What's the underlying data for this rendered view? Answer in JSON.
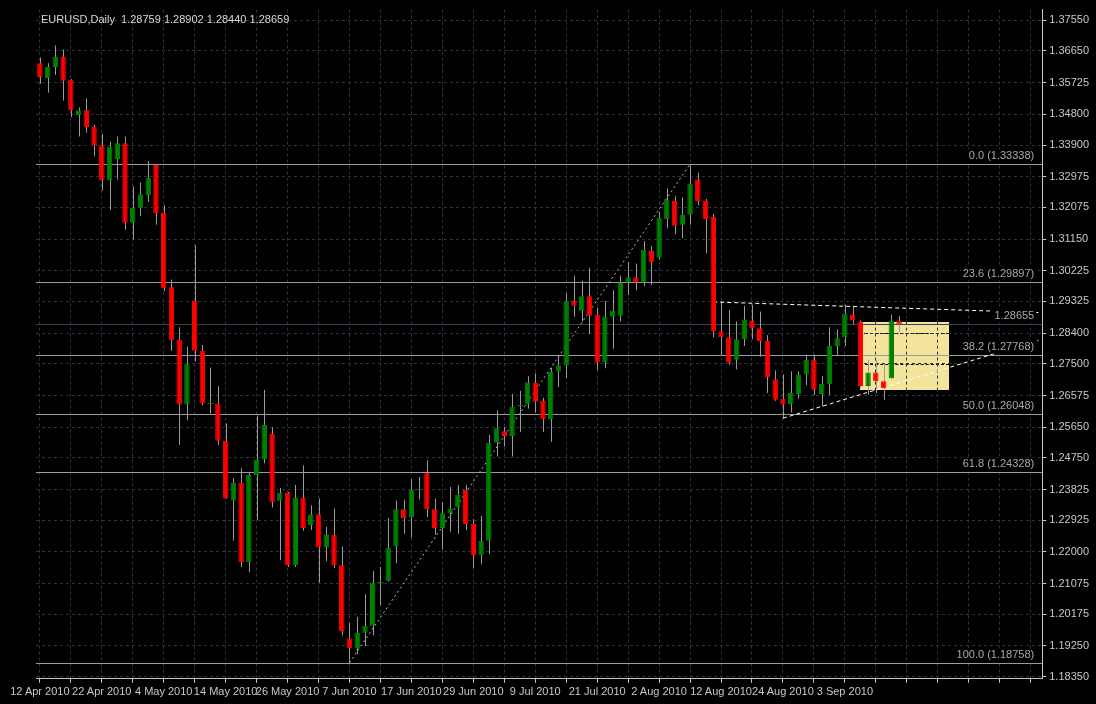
{
  "chart_data": {
    "type": "candlestick",
    "title": "EURUSD,Daily  1.28759 1.28902 1.28440 1.28659",
    "categories": [
      "12 Apr 2010",
      null,
      null,
      null,
      null,
      null,
      null,
      null,
      "22 Apr 2010",
      null,
      null,
      null,
      null,
      null,
      null,
      null,
      "4 May 2010",
      null,
      null,
      null,
      null,
      null,
      null,
      null,
      "14 May 2010",
      null,
      null,
      null,
      null,
      null,
      null,
      null,
      "26 May 2010",
      null,
      null,
      null,
      null,
      null,
      null,
      null,
      "7 Jun 2010",
      null,
      null,
      null,
      null,
      null,
      null,
      null,
      "17 Jun 2010",
      null,
      null,
      null,
      null,
      null,
      null,
      null,
      "29 Jun 2010",
      null,
      null,
      null,
      null,
      null,
      null,
      null,
      "9 Jul 2010",
      null,
      null,
      null,
      null,
      null,
      null,
      null,
      "21 Jul 2010",
      null,
      null,
      null,
      null,
      null,
      null,
      null,
      "2 Aug 2010",
      null,
      null,
      null,
      null,
      null,
      null,
      null,
      "12 Aug 2010",
      null,
      null,
      null,
      null,
      null,
      null,
      null,
      "24 Aug 2010",
      null,
      null,
      null,
      null,
      null,
      null,
      null,
      "3 Sep 2010",
      null,
      null,
      null,
      null,
      null,
      null,
      null,
      null,
      null,
      null,
      null,
      null,
      null,
      null,
      null,
      null,
      null,
      null,
      null,
      null,
      null,
      null,
      null,
      null,
      null
    ],
    "ohlc": [
      [
        1.3629,
        1.3646,
        1.3569,
        1.3589
      ],
      [
        1.3586,
        1.3629,
        1.3543,
        1.3618
      ],
      [
        1.3618,
        1.3681,
        1.3595,
        1.3649
      ],
      [
        1.3649,
        1.3669,
        1.352,
        1.3578
      ],
      [
        1.3581,
        1.3583,
        1.3472,
        1.3492
      ],
      [
        1.3478,
        1.35,
        1.3415,
        1.3492
      ],
      [
        1.3492,
        1.3526,
        1.3426,
        1.3443
      ],
      [
        1.3443,
        1.3449,
        1.3357,
        1.3389
      ],
      [
        1.3389,
        1.3423,
        1.3257,
        1.3286
      ],
      [
        1.3286,
        1.34,
        1.32,
        1.3386
      ],
      [
        1.3349,
        1.3415,
        1.3289,
        1.3395
      ],
      [
        1.3395,
        1.3415,
        1.3143,
        1.3163
      ],
      [
        1.3163,
        1.3269,
        1.3114,
        1.3206
      ],
      [
        1.3206,
        1.328,
        1.3183,
        1.3246
      ],
      [
        1.3243,
        1.3343,
        1.3223,
        1.3294
      ],
      [
        1.3332,
        1.3335,
        1.3157,
        1.3191
      ],
      [
        1.3191,
        1.3214,
        1.2963,
        1.2971
      ],
      [
        1.2974,
        1.2997,
        1.2788,
        1.282
      ],
      [
        1.282,
        1.2857,
        1.2513,
        1.2631
      ],
      [
        1.2631,
        1.28,
        1.2585,
        1.2751
      ],
      [
        1.2934,
        1.3097,
        1.2757,
        1.2788
      ],
      [
        1.2788,
        1.2805,
        1.2628,
        1.2634
      ],
      [
        1.2634,
        1.2739,
        1.2605,
        1.2634
      ],
      [
        1.2634,
        1.2685,
        1.2513,
        1.2525
      ],
      [
        1.2525,
        1.2576,
        1.2356,
        1.2356
      ],
      [
        1.235,
        1.2416,
        1.2233,
        1.2402
      ],
      [
        1.2402,
        1.2445,
        1.2156,
        1.217
      ],
      [
        1.217,
        1.2433,
        1.2141,
        1.2425
      ],
      [
        1.2425,
        1.2599,
        1.2293,
        1.247
      ],
      [
        1.247,
        1.2674,
        1.2459,
        1.2571
      ],
      [
        1.2545,
        1.2565,
        1.233,
        1.2345
      ],
      [
        1.235,
        1.2387,
        1.2176,
        1.2373
      ],
      [
        1.2373,
        1.2376,
        1.2156,
        1.2161
      ],
      [
        1.2161,
        1.2396,
        1.2156,
        1.2359
      ],
      [
        1.2359,
        1.2453,
        1.2262,
        1.227
      ],
      [
        1.2279,
        1.2336,
        1.2264,
        1.231
      ],
      [
        1.231,
        1.2356,
        1.211,
        1.2213
      ],
      [
        1.2213,
        1.2273,
        1.2173,
        1.225
      ],
      [
        1.225,
        1.2327,
        1.2153,
        1.2161
      ],
      [
        1.2161,
        1.2216,
        1.1956,
        1.1967
      ],
      [
        1.1947,
        1.1993,
        1.1876,
        1.1918
      ],
      [
        1.1918,
        1.201,
        1.1901,
        1.1964
      ],
      [
        1.1964,
        1.2076,
        1.1924,
        1.1984
      ],
      [
        1.1984,
        1.2144,
        1.1956,
        1.211
      ],
      [
        1.211,
        1.2156,
        1.2044,
        1.211
      ],
      [
        1.2116,
        1.2299,
        1.2113,
        1.2213
      ],
      [
        1.2216,
        1.235,
        1.2167,
        1.2325
      ],
      [
        1.2325,
        1.2353,
        1.2253,
        1.2299
      ],
      [
        1.2302,
        1.2413,
        1.2242,
        1.2382
      ],
      [
        1.2382,
        1.2419,
        1.2353,
        1.2382
      ],
      [
        1.243,
        1.2468,
        1.2302,
        1.2325
      ],
      [
        1.2325,
        1.2356,
        1.225,
        1.227
      ],
      [
        1.227,
        1.2345,
        1.2207,
        1.2313
      ],
      [
        1.2313,
        1.239,
        1.2259,
        1.2327
      ],
      [
        1.233,
        1.2396,
        1.2253,
        1.2367
      ],
      [
        1.2382,
        1.2396,
        1.2264,
        1.2282
      ],
      [
        1.2282,
        1.2296,
        1.2153,
        1.219
      ],
      [
        1.219,
        1.2305,
        1.2164,
        1.2233
      ],
      [
        1.2233,
        1.2542,
        1.2193,
        1.2519
      ],
      [
        1.2519,
        1.2614,
        1.2479,
        1.2562
      ],
      [
        1.2553,
        1.2565,
        1.2508,
        1.2539
      ],
      [
        1.2539,
        1.2662,
        1.2479,
        1.2625
      ],
      [
        1.2628,
        1.2671,
        1.2551,
        1.2628
      ],
      [
        1.2631,
        1.2714,
        1.2619,
        1.2696
      ],
      [
        1.2694,
        1.2722,
        1.2608,
        1.2639
      ],
      [
        1.2642,
        1.2651,
        1.2551,
        1.2588
      ],
      [
        1.2588,
        1.2739,
        1.2522,
        1.2728
      ],
      [
        1.2728,
        1.2774,
        1.2682,
        1.2745
      ],
      [
        1.2745,
        1.2957,
        1.2708,
        1.2934
      ],
      [
        1.2934,
        1.3008,
        1.2888,
        1.292
      ],
      [
        1.2905,
        1.2994,
        1.2874,
        1.2948
      ],
      [
        1.2948,
        1.3031,
        1.2837,
        1.2891
      ],
      [
        1.2894,
        1.2914,
        1.2731,
        1.2754
      ],
      [
        1.2754,
        1.2934,
        1.2737,
        1.2888
      ],
      [
        1.2888,
        1.2965,
        1.2794,
        1.2905
      ],
      [
        1.2891,
        1.3008,
        1.2874,
        1.2988
      ],
      [
        1.2988,
        1.3048,
        1.2951,
        1.3003
      ],
      [
        1.3003,
        1.3043,
        1.2965,
        1.2988
      ],
      [
        1.2988,
        1.3109,
        1.2977,
        1.3083
      ],
      [
        1.308,
        1.3094,
        1.298,
        1.3048
      ],
      [
        1.306,
        1.3194,
        1.3054,
        1.3177
      ],
      [
        1.3174,
        1.3263,
        1.3146,
        1.3229
      ],
      [
        1.3226,
        1.324,
        1.3129,
        1.3154
      ],
      [
        1.3157,
        1.3237,
        1.3117,
        1.3186
      ],
      [
        1.3186,
        1.3334,
        1.3157,
        1.3277
      ],
      [
        1.3289,
        1.3309,
        1.3214,
        1.3226
      ],
      [
        1.3226,
        1.3232,
        1.3074,
        1.3174
      ],
      [
        1.318,
        1.3189,
        1.2828,
        1.2845
      ],
      [
        1.2845,
        1.2931,
        1.2774,
        1.2828
      ],
      [
        1.2828,
        1.2908,
        1.2748,
        1.2754
      ],
      [
        1.2762,
        1.2874,
        1.2734,
        1.2822
      ],
      [
        1.2822,
        1.292,
        1.2802,
        1.288
      ],
      [
        1.2877,
        1.2923,
        1.2822,
        1.2854
      ],
      [
        1.2854,
        1.2903,
        1.2771,
        1.2817
      ],
      [
        1.2817,
        1.2834,
        1.2665,
        1.2711
      ],
      [
        1.2705,
        1.2731,
        1.2642,
        1.2645
      ],
      [
        1.2648,
        1.2719,
        1.2591,
        1.2631
      ],
      [
        1.2631,
        1.2728,
        1.2608,
        1.2665
      ],
      [
        1.2662,
        1.2728,
        1.2648,
        1.2719
      ],
      [
        1.2719,
        1.2777,
        1.2688,
        1.2762
      ],
      [
        1.2762,
        1.2777,
        1.2659,
        1.2674
      ],
      [
        1.2662,
        1.2714,
        1.2625,
        1.2691
      ],
      [
        1.2691,
        1.2857,
        1.2659,
        1.2802
      ],
      [
        1.2802,
        1.2851,
        1.2774,
        1.2825
      ],
      [
        1.2828,
        1.2923,
        1.2802,
        1.2897
      ],
      [
        1.2894,
        1.292,
        1.2865,
        1.2877
      ],
      [
        1.2874,
        1.2877,
        1.2679,
        1.2685
      ],
      [
        1.2685,
        1.2762,
        1.2659,
        1.2725
      ],
      [
        1.2725,
        1.2762,
        1.2665,
        1.2699
      ],
      [
        1.2699,
        1.2751,
        1.2645,
        1.2679
      ],
      [
        1.2708,
        1.2894,
        1.2705,
        1.2877
      ],
      [
        1.28759,
        1.28902,
        1.2844,
        1.28659
      ],
      null,
      null,
      null,
      null,
      null,
      null,
      null,
      null,
      null,
      null,
      null,
      null,
      null,
      null,
      null,
      null,
      null,
      null
    ],
    "colors": [
      "#ff0000",
      "#008000",
      "#008000",
      "#ff0000",
      "#ff0000",
      "#008000",
      "#ff0000",
      "#ff0000",
      "#ff0000",
      "#008000",
      "#008000",
      "#ff0000",
      "#008000",
      "#008000",
      "#008000",
      "#ff0000",
      "#ff0000",
      "#ff0000",
      "#ff0000",
      "#008000",
      "#ff0000",
      "#ff0000",
      "#008000",
      "#ff0000",
      "#ff0000",
      "#008000",
      "#ff0000",
      "#008000",
      "#008000",
      "#008000",
      "#ff0000",
      "#008000",
      "#ff0000",
      "#008000",
      "#ff0000",
      "#008000",
      "#ff0000",
      "#008000",
      "#ff0000",
      "#ff0000",
      "#ff0000",
      "#008000",
      "#008000",
      "#008000",
      "#008000",
      "#008000",
      "#008000",
      "#ff0000",
      "#008000",
      "#008000",
      "#ff0000",
      "#ff0000",
      "#008000",
      "#008000",
      "#008000",
      "#ff0000",
      "#ff0000",
      "#008000",
      "#008000",
      "#008000",
      "#ff0000",
      "#008000",
      "#008000",
      "#008000",
      "#ff0000",
      "#ff0000",
      "#008000",
      "#008000",
      "#008000",
      "#ff0000",
      "#008000",
      "#ff0000",
      "#ff0000",
      "#008000",
      "#008000",
      "#008000",
      "#008000",
      "#ff0000",
      "#008000",
      "#ff0000",
      "#008000",
      "#008000",
      "#ff0000",
      "#008000",
      "#008000",
      "#ff0000",
      "#ff0000",
      "#ff0000",
      "#ff0000",
      "#ff0000",
      "#008000",
      "#008000",
      "#ff0000",
      "#ff0000",
      "#ff0000",
      "#ff0000",
      "#ff0000",
      "#008000",
      "#008000",
      "#008000",
      "#ff0000",
      "#008000",
      "#008000",
      "#008000",
      "#008000",
      "#ff0000",
      "#ff0000",
      "#008000",
      "#ff0000",
      "#ff0000",
      "#008000",
      "#ff0000",
      null,
      null,
      null,
      null,
      null,
      null,
      null,
      null,
      null,
      null,
      null,
      null,
      null,
      null,
      null,
      null,
      null,
      null
    ],
    "series": [
      {
        "type": "line",
        "color": "#b4b4b4",
        "line_style": "dotted",
        "values": [
          null,
          null,
          null,
          null,
          null,
          null,
          null,
          null,
          null,
          null,
          null,
          null,
          null,
          null,
          null,
          null,
          null,
          null,
          null,
          null,
          null,
          null,
          null,
          null,
          null,
          null,
          null,
          null,
          null,
          null,
          null,
          null,
          null,
          null,
          null,
          null,
          null,
          null,
          null,
          null,
          1.1876,
          null,
          null,
          null,
          null,
          null,
          null,
          null,
          null,
          null,
          null,
          null,
          null,
          null,
          null,
          null,
          null,
          null,
          null,
          null,
          null,
          null,
          null,
          null,
          null,
          null,
          null,
          null,
          null,
          null,
          null,
          null,
          null,
          null,
          null,
          null,
          null,
          null,
          null,
          null,
          null,
          null,
          null,
          null,
          1.3334,
          null,
          null,
          null,
          null,
          null,
          null,
          null,
          null,
          null,
          null,
          null,
          null,
          null,
          null,
          null,
          null,
          null,
          null,
          null,
          null,
          null,
          null,
          null,
          null,
          null,
          null,
          null,
          null,
          null,
          null,
          null,
          null,
          null,
          null,
          null,
          null,
          null,
          null,
          null,
          null,
          null,
          null,
          null,
          null,
          null
        ]
      },
      {
        "type": "line",
        "color": "#ffffff",
        "line_style": "dashed",
        "values": [
          null,
          null,
          null,
          null,
          null,
          null,
          null,
          null,
          null,
          null,
          null,
          null,
          null,
          null,
          null,
          null,
          null,
          null,
          null,
          null,
          null,
          null,
          null,
          null,
          null,
          null,
          null,
          null,
          null,
          null,
          null,
          null,
          null,
          null,
          null,
          null,
          null,
          null,
          null,
          null,
          null,
          null,
          null,
          null,
          null,
          null,
          null,
          null,
          null,
          null,
          null,
          null,
          null,
          null,
          null,
          null,
          null,
          null,
          null,
          null,
          null,
          null,
          null,
          null,
          null,
          null,
          null,
          null,
          null,
          null,
          null,
          null,
          null,
          null,
          null,
          null,
          null,
          null,
          null,
          null,
          null,
          null,
          null,
          null,
          null,
          null,
          null,
          1.2931,
          null,
          null,
          null,
          null,
          null,
          null,
          null,
          null,
          null,
          null,
          null,
          null,
          null,
          null,
          null,
          null,
          null,
          null,
          null,
          null,
          null,
          null,
          null,
          null,
          null,
          null,
          null,
          null,
          null,
          null,
          null,
          null,
          null,
          null,
          null,
          null,
          null,
          null,
          null,
          null,
          null,
          1.29
        ]
      },
      {
        "type": "line",
        "color": "#ffffff",
        "line_style": "dashed",
        "values": [
          null,
          null,
          null,
          null,
          null,
          null,
          null,
          null,
          null,
          null,
          null,
          null,
          null,
          null,
          null,
          null,
          null,
          null,
          null,
          null,
          null,
          null,
          null,
          null,
          null,
          null,
          null,
          null,
          null,
          null,
          null,
          null,
          null,
          null,
          null,
          null,
          null,
          null,
          null,
          null,
          null,
          null,
          null,
          null,
          null,
          null,
          null,
          null,
          null,
          null,
          null,
          null,
          null,
          null,
          null,
          null,
          null,
          null,
          null,
          null,
          null,
          null,
          null,
          null,
          null,
          null,
          null,
          null,
          null,
          null,
          null,
          null,
          null,
          null,
          null,
          null,
          null,
          null,
          null,
          null,
          null,
          null,
          null,
          null,
          null,
          null,
          null,
          null,
          null,
          null,
          null,
          null,
          null,
          null,
          null,
          null,
          1.2591,
          null,
          null,
          null,
          null,
          null,
          null,
          null,
          null,
          null,
          null,
          null,
          null,
          null,
          null,
          null,
          null,
          null,
          null,
          null,
          null,
          null,
          null,
          null,
          null,
          null,
          null,
          null,
          null,
          null,
          null,
          null,
          null,
          1.2819
        ]
      }
    ],
    "ylim": [
      1.1829,
      1.3786
    ],
    "yticks": [
      {
        "value": 1.3755,
        "label": "1.37550"
      },
      {
        "value": 1.3665,
        "label": "1.36650"
      },
      {
        "value": 1.35725,
        "label": "1.35725"
      },
      {
        "value": 1.348,
        "label": "1.34800"
      },
      {
        "value": 1.339,
        "label": "1.33900"
      },
      {
        "value": 1.32975,
        "label": "1.32975"
      },
      {
        "value": 1.32075,
        "label": "1.32075"
      },
      {
        "value": 1.3115,
        "label": "1.31150"
      },
      {
        "value": 1.30225,
        "label": "1.30225"
      },
      {
        "value": 1.29325,
        "label": "1.29325"
      },
      {
        "value": 1.284,
        "label": "1.28400"
      },
      {
        "value": 1.275,
        "label": "1.27500"
      },
      {
        "value": 1.26575,
        "label": "1.26575"
      },
      {
        "value": 1.2565,
        "label": "1.25650"
      },
      {
        "value": 1.2475,
        "label": "1.24750"
      },
      {
        "value": 1.23825,
        "label": "1.23825"
      },
      {
        "value": 1.22925,
        "label": "1.22925"
      },
      {
        "value": 1.22,
        "label": "1.22000"
      },
      {
        "value": 1.21075,
        "label": "1.21075"
      },
      {
        "value": 1.20175,
        "label": "1.20175"
      },
      {
        "value": 1.1925,
        "label": "1.19250"
      },
      {
        "value": 1.1835,
        "label": "1.18350"
      }
    ],
    "grid": true,
    "ref_lines": [
      {
        "axis": "y",
        "value": 1.33338,
        "label": "0.0 (1.33338)",
        "color": "#9a9aa2"
      },
      {
        "axis": "y",
        "value": 1.29897,
        "label": "23.6 (1.29897)",
        "color": "#9a9aa2"
      },
      {
        "axis": "y",
        "value": 1.27768,
        "label": "38.2 (1.27768)",
        "color": "#9a9aa2"
      },
      {
        "axis": "y",
        "value": 1.26048,
        "label": "50.0 (1.26048)",
        "color": "#9a9aa2"
      },
      {
        "axis": "y",
        "value": 1.24328,
        "label": "61.8 (1.24328)",
        "color": "#9a9aa2"
      },
      {
        "axis": "y",
        "value": 1.18758,
        "label": "100.0 (1.18758)",
        "color": "#9a9aa2"
      },
      {
        "axis": "y",
        "value": 1.28655,
        "label": "1.28655",
        "color": "#3a4058"
      }
    ]
  }
}
